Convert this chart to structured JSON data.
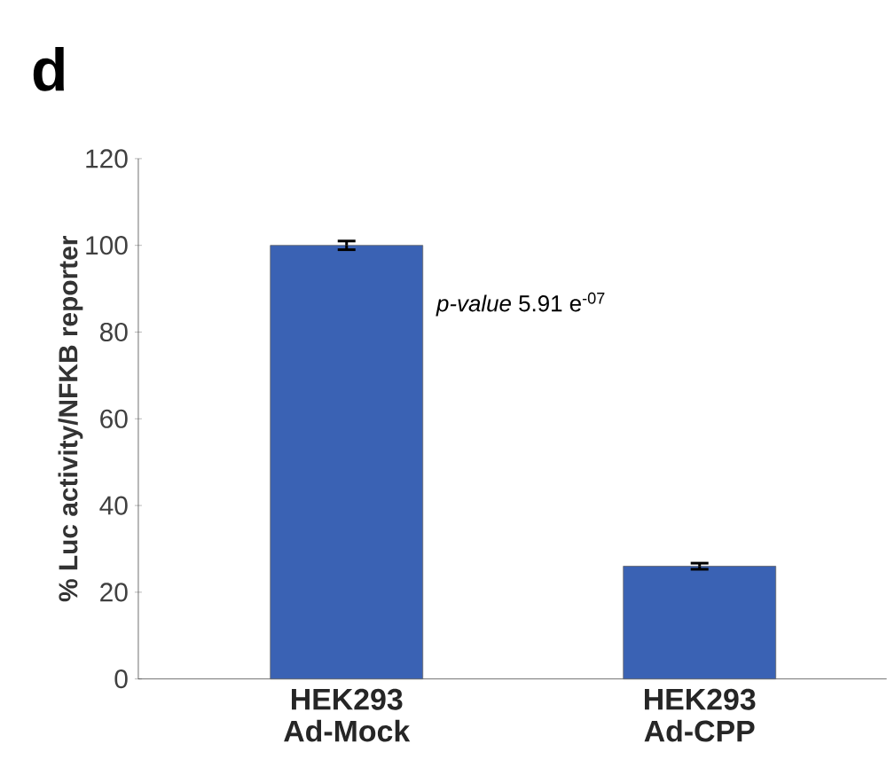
{
  "chart_data": {
    "type": "bar",
    "title": "d",
    "ylabel": "% Luc activity/NFKB reporter",
    "categories": [
      "HEK293 Ad-Mock",
      "HEK293 Ad-CPP"
    ],
    "values": [
      100,
      26
    ],
    "errors": [
      1,
      0.7
    ],
    "color": "#3a62b4",
    "ylim": [
      0,
      120
    ],
    "yticks": [
      0,
      20,
      40,
      60,
      80,
      100,
      120
    ],
    "grid": false,
    "annotations": [
      "*p-value* 5.91 e$^{-07}$"
    ]
  }
}
